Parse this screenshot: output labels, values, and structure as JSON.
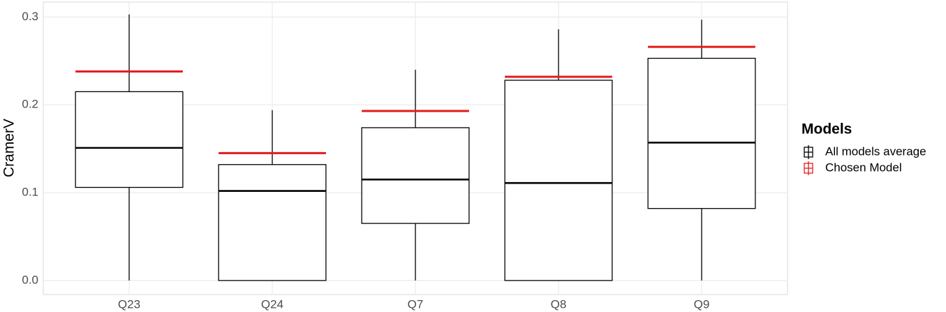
{
  "chart_data": {
    "type": "box",
    "y_label": "CramerV",
    "categories": [
      "Q23",
      "Q24",
      "Q7",
      "Q8",
      "Q9"
    ],
    "legend_title": "Models",
    "series": [
      {
        "name": "All models average",
        "color": "#000000",
        "min": [
          0,
          0,
          0,
          0,
          0
        ],
        "q1": [
          0.106,
          0,
          0.065,
          0,
          0.082
        ],
        "median": [
          0.151,
          0.102,
          0.115,
          0.111,
          0.157
        ],
        "q3": [
          0.215,
          0.132,
          0.174,
          0.228,
          0.253
        ],
        "max": [
          0.303,
          0.194,
          0.24,
          0.286,
          0.297
        ]
      },
      {
        "name": "Chosen Model",
        "color": "#e31a1c",
        "values": [
          0.238,
          0.145,
          0.193,
          0.232,
          0.266
        ]
      }
    ],
    "ylim": [
      -0.016,
      0.317
    ],
    "yticks": [
      {
        "value": 0,
        "label": "0.0"
      },
      0.1,
      0.2,
      0.3
    ],
    "grid": true
  }
}
